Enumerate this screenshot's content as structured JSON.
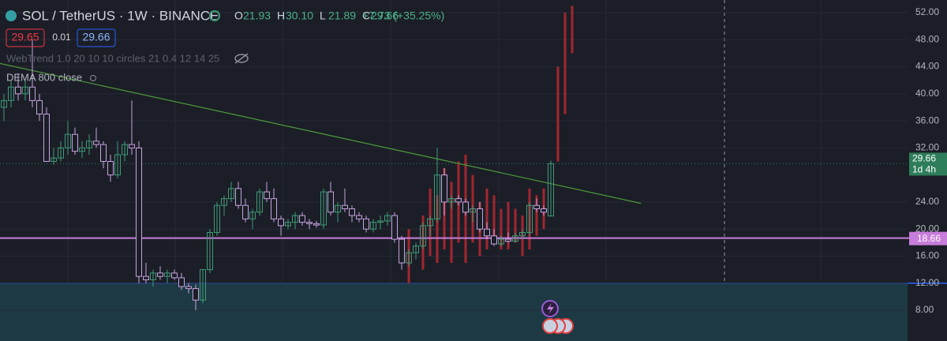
{
  "header": {
    "title": "SOL / TetherUS · 1W · BINANCE",
    "ohlc": [
      {
        "label": "O",
        "value": "21.93"
      },
      {
        "label": "H",
        "value": "30.10"
      },
      {
        "label": "L",
        "value": "21.89"
      },
      {
        "label": "C",
        "value": "29.66"
      }
    ],
    "change": "+7.73 (+35.25%)",
    "sell_price": "29.65",
    "spread": "0.01",
    "buy_price": "29.66",
    "indicators": [
      "WebTrend 1.0 20 10 10 circles 21 0.4 12 14 25",
      "DEMA 800 close"
    ]
  },
  "chart_data": {
    "type": "candlestick",
    "ylim": [
      3.45,
      53.87
    ],
    "yticks": [
      {
        "value": 8,
        "label": "8.00"
      },
      {
        "value": 12,
        "label": "12.00"
      },
      {
        "value": 16,
        "label": "16.00"
      },
      {
        "value": 20,
        "label": "20.00"
      },
      {
        "value": 24,
        "label": "24.00"
      },
      {
        "value": 32,
        "label": "32.00"
      },
      {
        "value": 36,
        "label": "36.00"
      },
      {
        "value": 40,
        "label": "40.00"
      },
      {
        "value": 44,
        "label": "44.00"
      },
      {
        "value": 48,
        "label": "48.00"
      },
      {
        "value": 52,
        "label": "52.00"
      }
    ],
    "grid": true,
    "up_color": "#3f9b78",
    "down_color": "#c9a3e0",
    "overlay_color": "#a3262f",
    "candles": [
      [
        38,
        40,
        36,
        39
      ],
      [
        39,
        42,
        38,
        41
      ],
      [
        41,
        43,
        39,
        40
      ],
      [
        40,
        42,
        39,
        41
      ],
      [
        41,
        48,
        38,
        39
      ],
      [
        39,
        40,
        36,
        37
      ],
      [
        37,
        38,
        30,
        30
      ],
      [
        30,
        32,
        29.5,
        30.5
      ],
      [
        30.5,
        33,
        30,
        32
      ],
      [
        32,
        36,
        31,
        34
      ],
      [
        34,
        35,
        31,
        31.5
      ],
      [
        31.5,
        33,
        30.5,
        32
      ],
      [
        32,
        34,
        31,
        33
      ],
      [
        33,
        35,
        32,
        32.5
      ],
      [
        32.5,
        33,
        29,
        30
      ],
      [
        30,
        31,
        27,
        28
      ],
      [
        28,
        33,
        27.5,
        31
      ],
      [
        31,
        33,
        30,
        32.5
      ],
      [
        32.5,
        39,
        31,
        32
      ],
      [
        32,
        33,
        12,
        13
      ],
      [
        13,
        15,
        12,
        12.5
      ],
      [
        12.5,
        14,
        11.5,
        13.5
      ],
      [
        13.5,
        14.5,
        12.5,
        13
      ],
      [
        13,
        14,
        12,
        13.5
      ],
      [
        13.5,
        14,
        12.5,
        12.8
      ],
      [
        12.8,
        13.5,
        11,
        11.5
      ],
      [
        11.5,
        12,
        10.5,
        11.2
      ],
      [
        11.2,
        11.8,
        8,
        9.5
      ],
      [
        9.5,
        14,
        9,
        14
      ],
      [
        14,
        20,
        13.5,
        19.5
      ],
      [
        19.5,
        24,
        19,
        23.5
      ],
      [
        23.5,
        25,
        22,
        24.5
      ],
      [
        24.5,
        27,
        24,
        26
      ],
      [
        26,
        27,
        23,
        23.5
      ],
      [
        23.5,
        24.5,
        21,
        21.5
      ],
      [
        21.5,
        23,
        20,
        22.5
      ],
      [
        22.5,
        26,
        22,
        25.5
      ],
      [
        25.5,
        27,
        24,
        24.5
      ],
      [
        24.5,
        26,
        21,
        21.5
      ],
      [
        21.5,
        22,
        19,
        20.5
      ],
      [
        20.5,
        21.5,
        20,
        21
      ],
      [
        21,
        22.5,
        20,
        22
      ],
      [
        22,
        22.5,
        20.5,
        21
      ],
      [
        21,
        21.5,
        20,
        20.8
      ],
      [
        20.8,
        21.2,
        20.2,
        20.6
      ],
      [
        20.6,
        26,
        20,
        25.5
      ],
      [
        25.5,
        27,
        22,
        22.5
      ],
      [
        22.5,
        24,
        21,
        23.5
      ],
      [
        23.5,
        26,
        22.5,
        23
      ],
      [
        23,
        23.5,
        21,
        22
      ],
      [
        22,
        22.5,
        21,
        21.5
      ],
      [
        21.5,
        22,
        19.5,
        20
      ],
      [
        20,
        21.5,
        19.5,
        21
      ],
      [
        21,
        22,
        20,
        21.2
      ],
      [
        21.2,
        22.5,
        20.5,
        22
      ],
      [
        22,
        22.5,
        18,
        18.5
      ],
      [
        18.5,
        19,
        14,
        15
      ],
      [
        15,
        17,
        14.5,
        16.5
      ],
      [
        16.5,
        18,
        15.5,
        17.5
      ],
      [
        17.5,
        21,
        17,
        20.5
      ],
      [
        20.5,
        22,
        19,
        21.5
      ],
      [
        21.5,
        32,
        21,
        28
      ],
      [
        28,
        29,
        22,
        24
      ],
      [
        24,
        25,
        23,
        24.5
      ],
      [
        24.5,
        25,
        23.5,
        24
      ],
      [
        24,
        24.5,
        22,
        22.5
      ],
      [
        22.5,
        23.5,
        21,
        23
      ],
      [
        23,
        24,
        19.5,
        20
      ],
      [
        20,
        21,
        18.5,
        19
      ],
      [
        19,
        20,
        17.5,
        17.8
      ],
      [
        17.8,
        19,
        17.5,
        18.5
      ],
      [
        18.5,
        19.5,
        18,
        18.2
      ],
      [
        18.2,
        19.5,
        18,
        19
      ],
      [
        19,
        20,
        18.5,
        19.5
      ],
      [
        19.5,
        24,
        19,
        23.5
      ],
      [
        23.5,
        24.5,
        22.5,
        23
      ],
      [
        23,
        23.5,
        22,
        22.5
      ],
      [
        21.93,
        30.1,
        21.89,
        29.66
      ]
    ],
    "overlay": [
      null,
      null,
      null,
      null,
      null,
      null,
      null,
      null,
      null,
      null,
      null,
      null,
      null,
      null,
      null,
      null,
      null,
      null,
      null,
      null,
      null,
      null,
      null,
      null,
      null,
      null,
      null,
      null,
      null,
      null,
      null,
      null,
      null,
      null,
      null,
      null,
      null,
      null,
      null,
      null,
      null,
      null,
      null,
      null,
      null,
      null,
      null,
      null,
      null,
      null,
      null,
      null,
      null,
      null,
      null,
      null,
      null,
      [
        12,
        20
      ],
      null,
      [
        14,
        22
      ],
      [
        16,
        26
      ],
      [
        15,
        25
      ],
      [
        17,
        29
      ],
      [
        15,
        27
      ],
      [
        18,
        30
      ],
      [
        15,
        31
      ],
      [
        18,
        28
      ],
      [
        16,
        24
      ],
      [
        17,
        26
      ],
      [
        18,
        25
      ],
      [
        17,
        23
      ],
      [
        17,
        24
      ],
      [
        18,
        23
      ],
      [
        16,
        22
      ],
      [
        17,
        26
      ],
      [
        19,
        25
      ],
      [
        20,
        26
      ],
      null,
      [
        30,
        44
      ],
      [
        37,
        52
      ],
      [
        46,
        53
      ]
    ],
    "trendline": {
      "start": [
        -0.6,
        44.5
      ],
      "end": [
        89.7,
        23.8
      ],
      "color": "#4f9a3c"
    },
    "support_line": {
      "value": 18.66,
      "label": "18.66",
      "color": "#c77dd9"
    },
    "zone_top": {
      "value": 12,
      "color": "#2962ff"
    },
    "last_price": {
      "value": 29.66,
      "label": "29.66",
      "countdown": "1d 4h",
      "color": "#2e7d5b"
    }
  }
}
